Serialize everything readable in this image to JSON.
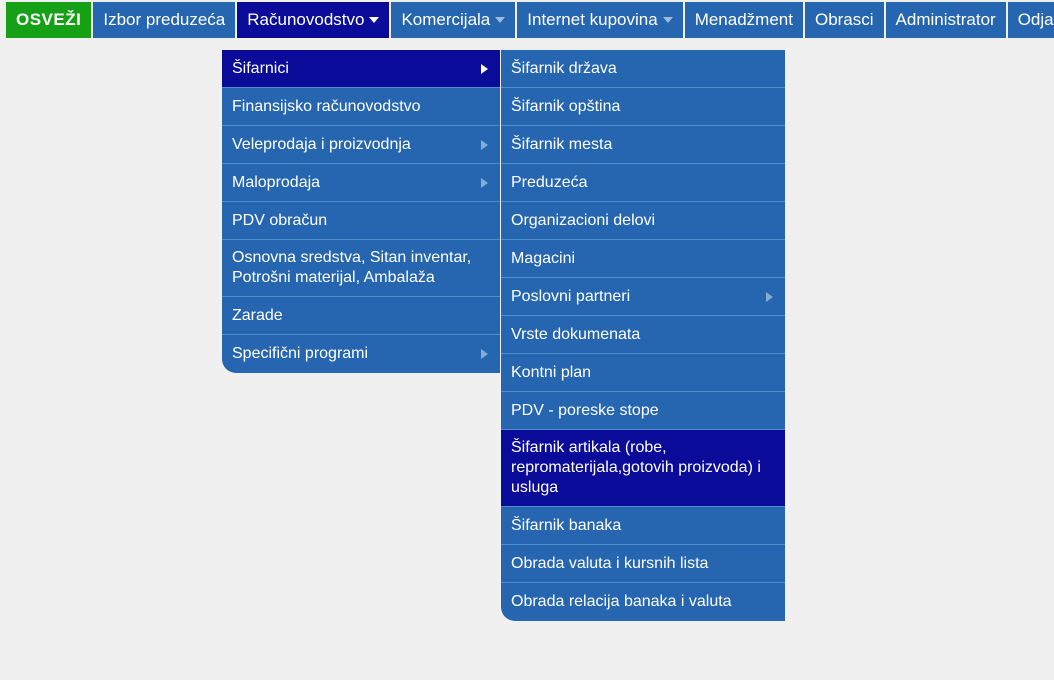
{
  "colors": {
    "menubar_bg": "#2666b0",
    "refresh_bg": "#15a015",
    "active_bg": "#0b0b9a",
    "text": "#ffffff",
    "divider": "#508ed0",
    "page_bg": "#f0f0f0"
  },
  "menubar": {
    "refresh": "OSVEŽI",
    "items": [
      {
        "label": "Izbor preduzeća",
        "has_caret": false,
        "active": false
      },
      {
        "label": "Računovodstvo",
        "has_caret": true,
        "active": true
      },
      {
        "label": "Komercijala",
        "has_caret": true,
        "active": false
      },
      {
        "label": "Internet kupovina",
        "has_caret": true,
        "active": false
      },
      {
        "label": "Menadžment",
        "has_caret": false,
        "active": false
      },
      {
        "label": "Obrasci",
        "has_caret": false,
        "active": false
      },
      {
        "label": "Administrator",
        "has_caret": false,
        "active": false
      },
      {
        "label": "Odjava",
        "has_caret": false,
        "active": false
      }
    ]
  },
  "dropdown1": [
    {
      "label": "Šifarnici",
      "has_arrow": true,
      "active": true
    },
    {
      "label": "Finansijsko računovodstvo",
      "has_arrow": false,
      "active": false
    },
    {
      "label": "Veleprodaja i proizvodnja",
      "has_arrow": true,
      "active": false
    },
    {
      "label": "Maloprodaja",
      "has_arrow": true,
      "active": false
    },
    {
      "label": "PDV obračun",
      "has_arrow": false,
      "active": false
    },
    {
      "label": "Osnovna sredstva, Sitan inventar, Potrošni materijal, Ambalaža",
      "has_arrow": false,
      "active": false
    },
    {
      "label": "Zarade",
      "has_arrow": false,
      "active": false
    },
    {
      "label": "Specifični programi",
      "has_arrow": true,
      "active": false
    }
  ],
  "dropdown2": [
    {
      "label": "Šifarnik država",
      "has_arrow": false,
      "active": false
    },
    {
      "label": "Šifarnik opština",
      "has_arrow": false,
      "active": false
    },
    {
      "label": "Šifarnik mesta",
      "has_arrow": false,
      "active": false
    },
    {
      "label": "Preduzeća",
      "has_arrow": false,
      "active": false
    },
    {
      "label": "Organizacioni delovi",
      "has_arrow": false,
      "active": false
    },
    {
      "label": "Magacini",
      "has_arrow": false,
      "active": false
    },
    {
      "label": "Poslovni partneri",
      "has_arrow": true,
      "active": false
    },
    {
      "label": "Vrste dokumenata",
      "has_arrow": false,
      "active": false
    },
    {
      "label": "Kontni plan",
      "has_arrow": false,
      "active": false
    },
    {
      "label": "PDV - poreske stope",
      "has_arrow": false,
      "active": false
    },
    {
      "label": "Šifarnik artikala (robe, repromaterijala,gotovih proizvoda) i usluga",
      "has_arrow": false,
      "active": true
    },
    {
      "label": "Šifarnik banaka",
      "has_arrow": false,
      "active": false
    },
    {
      "label": "Obrada valuta i kursnih lista",
      "has_arrow": false,
      "active": false
    },
    {
      "label": "Obrada relacija banaka i valuta",
      "has_arrow": false,
      "active": false
    }
  ]
}
